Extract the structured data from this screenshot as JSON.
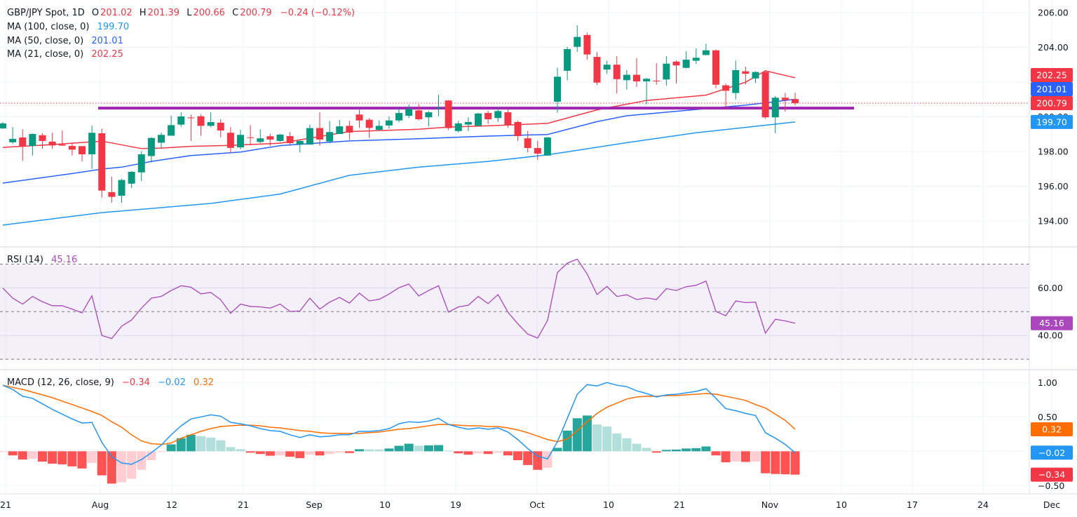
{
  "header": {
    "symbol": "GBP/JPY Spot, 1D",
    "o_label": "O",
    "open": "201.02",
    "h_label": "H",
    "high": "201.39",
    "l_label": "L",
    "low": "200.66",
    "c_label": "C",
    "close": "200.79",
    "change": "−0.24 (−0.12%)"
  },
  "ma_legend": [
    {
      "label": "MA (100, close, 0)",
      "value": "199.70",
      "color": "#2196f3"
    },
    {
      "label": "MA (50, close, 0)",
      "value": "201.01",
      "color": "#2962ff"
    },
    {
      "label": "MA (21, close, 0)",
      "value": "202.25",
      "color": "#f23645"
    }
  ],
  "rsi_legend": {
    "label": "RSI (14)",
    "value": "45.16"
  },
  "macd_legend": {
    "label": "MACD (12, 26, close, 9)",
    "hist": "−0.34",
    "macd": "−0.02",
    "signal": "0.32"
  },
  "price_axis": [
    "206.00",
    "204.00",
    "202.00",
    "200.00",
    "198.00",
    "196.00",
    "194.00"
  ],
  "rsi_axis": [
    "60.00",
    "40.00"
  ],
  "macd_axis": [
    "1.00",
    "0.50",
    "−0.50"
  ],
  "time_axis": [
    "21",
    "Aug",
    "12",
    "21",
    "Sep",
    "10",
    "19",
    "Oct",
    "10",
    "21",
    "Nov",
    "10",
    "17",
    "24",
    "Dec"
  ],
  "price_tags": [
    {
      "value": "202.25",
      "color": "#f23645"
    },
    {
      "value": "201.01",
      "color": "#2962ff"
    },
    {
      "value": "200.79",
      "color": "#f23645"
    },
    {
      "value": "199.70",
      "color": "#2196f3"
    }
  ],
  "rsi_tag": {
    "value": "45.16",
    "color": "#ab47bc"
  },
  "macd_tags": [
    {
      "value": "0.32",
      "color": "#ff6d00"
    },
    {
      "value": "−0.02",
      "color": "#2196f3"
    },
    {
      "value": "−0.34",
      "color": "#f23645"
    }
  ],
  "colors": {
    "up": "#089981",
    "down": "#f23645",
    "resistance": "#9c27b0",
    "rsi": "#ab47bc",
    "macd": "#2196f3",
    "signal": "#ff6d00"
  },
  "chart_data": [
    {
      "type": "candlestick",
      "title": "GBP/JPY Spot, 1D",
      "ylim": [
        193,
        206.6
      ],
      "grid": true,
      "resistance_line": 200.5,
      "last_price": 200.79,
      "candles": [
        [
          "07-18",
          199.33,
          199.7,
          199.3,
          199.62
        ],
        [
          "07-21",
          198.53,
          199.41,
          198.45,
          198.73
        ],
        [
          "07-22",
          198.81,
          199.28,
          197.46,
          198.28
        ],
        [
          "07-23",
          198.32,
          199.05,
          197.77,
          199.01
        ],
        [
          "07-24",
          198.94,
          199.05,
          198.16,
          198.61
        ],
        [
          "07-25",
          198.57,
          199.08,
          198.15,
          198.35
        ],
        [
          "07-28",
          198.4,
          199.21,
          198.33,
          198.34
        ],
        [
          "07-29",
          198.32,
          198.51,
          197.77,
          198.11
        ],
        [
          "07-30",
          198.31,
          198.31,
          197.43,
          197.84
        ],
        [
          "07-31",
          197.84,
          199.49,
          197.0,
          199.08
        ],
        [
          "08-01",
          199.05,
          199.32,
          195.35,
          195.75
        ],
        [
          "08-04",
          195.66,
          196.55,
          195.05,
          195.39
        ],
        [
          "08-05",
          195.45,
          196.43,
          195.05,
          196.36
        ],
        [
          "08-06",
          196.15,
          196.87,
          195.9,
          196.83
        ],
        [
          "08-07",
          196.8,
          198.02,
          196.29,
          197.84
        ],
        [
          "08-08",
          197.74,
          198.82,
          197.37,
          198.78
        ],
        [
          "08-11",
          198.51,
          199.09,
          198.17,
          198.96
        ],
        [
          "08-12",
          198.91,
          200.06,
          198.91,
          199.52
        ],
        [
          "08-13",
          199.55,
          200.26,
          199.43,
          200.02
        ],
        [
          "08-14",
          199.96,
          200.13,
          198.61,
          199.93
        ],
        [
          "08-15",
          200.03,
          200.13,
          198.91,
          199.48
        ],
        [
          "08-18",
          199.48,
          200.26,
          199.39,
          199.7
        ],
        [
          "08-19",
          199.66,
          199.86,
          198.82,
          199.21
        ],
        [
          "08-20",
          199.08,
          199.41,
          197.91,
          198.21
        ],
        [
          "08-21",
          198.24,
          199.25,
          198.13,
          198.96
        ],
        [
          "08-22",
          198.82,
          199.52,
          198.35,
          198.78
        ],
        [
          "08-25",
          198.55,
          199.28,
          198.48,
          198.76
        ],
        [
          "08-26",
          198.88,
          199.02,
          198.31,
          198.69
        ],
        [
          "08-27",
          198.61,
          199.0,
          198.55,
          198.98
        ],
        [
          "08-28",
          198.89,
          199.12,
          198.4,
          198.48
        ],
        [
          "08-29",
          198.4,
          198.67,
          197.95,
          198.61
        ],
        [
          "09-01",
          198.4,
          199.55,
          198.4,
          199.35
        ],
        [
          "09-02",
          199.35,
          200.26,
          198.34,
          198.69
        ],
        [
          "09-03",
          198.58,
          199.75,
          198.48,
          199.12
        ],
        [
          "09-04",
          199.01,
          199.82,
          199.0,
          199.45
        ],
        [
          "09-05",
          199.48,
          199.77,
          198.67,
          199.09
        ],
        [
          "09-08",
          200.13,
          200.4,
          199.36,
          199.79
        ],
        [
          "09-09",
          199.83,
          199.93,
          198.78,
          199.36
        ],
        [
          "09-10",
          199.25,
          199.79,
          199.2,
          199.48
        ],
        [
          "09-11",
          199.5,
          200.02,
          199.32,
          199.79
        ],
        [
          "09-12",
          199.79,
          200.49,
          199.68,
          200.22
        ],
        [
          "09-15",
          200.06,
          200.71,
          199.93,
          200.45
        ],
        [
          "09-16",
          200.37,
          200.73,
          199.79,
          199.86
        ],
        [
          "09-17",
          199.97,
          200.33,
          199.45,
          200.26
        ],
        [
          "09-18",
          200.5,
          201.27,
          200.03,
          200.53
        ],
        [
          "09-19",
          200.94,
          200.96,
          199.23,
          199.35
        ],
        [
          "09-22",
          199.18,
          199.77,
          199.1,
          199.62
        ],
        [
          "09-23",
          199.55,
          199.97,
          199.18,
          199.7
        ],
        [
          "09-24",
          199.48,
          200.22,
          199.45,
          200.19
        ],
        [
          "09-25",
          200.22,
          200.36,
          199.59,
          199.86
        ],
        [
          "09-26",
          199.93,
          200.51,
          199.7,
          200.33
        ],
        [
          "09-29",
          200.26,
          200.42,
          199.36,
          199.52
        ],
        [
          "09-30",
          199.7,
          199.77,
          198.61,
          198.89
        ],
        [
          "10-01",
          198.76,
          199.18,
          197.95,
          198.2
        ],
        [
          "10-02",
          198.2,
          198.62,
          197.5,
          197.88
        ],
        [
          "10-03",
          197.77,
          198.85,
          197.75,
          198.81
        ],
        [
          "10-06",
          200.87,
          202.82,
          200.23,
          202.31
        ],
        [
          "10-07",
          202.65,
          204.03,
          202.11,
          203.9
        ],
        [
          "10-08",
          204.03,
          205.27,
          203.74,
          204.6
        ],
        [
          "10-09",
          204.71,
          204.84,
          203.29,
          203.59
        ],
        [
          "10-10",
          203.45,
          203.72,
          201.84,
          201.97
        ],
        [
          "10-13",
          202.72,
          203.23,
          202.48,
          203.0
        ],
        [
          "10-14",
          203.0,
          203.49,
          201.34,
          202.17
        ],
        [
          "10-15",
          202.11,
          202.69,
          201.57,
          202.42
        ],
        [
          "10-16",
          202.42,
          203.39,
          201.72,
          202.04
        ],
        [
          "10-17",
          202.04,
          202.24,
          200.71,
          202.19
        ],
        [
          "10-20",
          202.08,
          203.09,
          201.85,
          202.04
        ],
        [
          "10-21",
          202.15,
          203.49,
          201.79,
          203.06
        ],
        [
          "10-22",
          203.18,
          203.25,
          201.92,
          202.96
        ],
        [
          "10-23",
          202.82,
          203.77,
          202.79,
          203.29
        ],
        [
          "10-24",
          203.23,
          203.94,
          203.05,
          203.4
        ],
        [
          "10-27",
          203.56,
          204.21,
          203.54,
          203.83
        ],
        [
          "10-28",
          203.83,
          203.87,
          201.65,
          201.85
        ],
        [
          "10-29",
          201.81,
          201.92,
          200.53,
          201.5
        ],
        [
          "10-30",
          201.37,
          203.23,
          201.0,
          202.69
        ],
        [
          "10-31",
          202.62,
          202.89,
          201.85,
          202.48
        ],
        [
          "11-03",
          202.21,
          202.62,
          201.95,
          202.58
        ],
        [
          "11-04",
          202.58,
          202.69,
          199.89,
          199.97
        ],
        [
          "11-05",
          199.97,
          201.2,
          199.05,
          201.1
        ],
        [
          "11-06",
          201.1,
          201.37,
          200.3,
          200.96
        ],
        [
          "11-07",
          201.02,
          201.39,
          200.66,
          200.79
        ]
      ],
      "moving_averages": [
        {
          "name": "MA (100, close, 0)",
          "color": "#2196f3",
          "points": [
            [
              "07-18",
              193.76
            ],
            [
              "08-01",
              194.48
            ],
            [
              "08-18",
              195.01
            ],
            [
              "08-27",
              195.55
            ],
            [
              "09-05",
              196.63
            ],
            [
              "09-16",
              197.1
            ],
            [
              "09-25",
              197.43
            ],
            [
              "10-03",
              197.81
            ],
            [
              "10-15",
              198.51
            ],
            [
              "10-24",
              199.08
            ],
            [
              "11-07",
              199.7
            ]
          ]
        },
        {
          "name": "MA (50, close, 0)",
          "color": "#2962ff",
          "points": [
            [
              "07-18",
              196.18
            ],
            [
              "07-29",
              196.73
            ],
            [
              "08-01",
              196.99
            ],
            [
              "08-05",
              197.1
            ],
            [
              "08-08",
              197.43
            ],
            [
              "08-14",
              197.77
            ],
            [
              "08-21",
              197.97
            ],
            [
              "08-27",
              198.34
            ],
            [
              "09-05",
              198.61
            ],
            [
              "09-16",
              198.74
            ],
            [
              "09-25",
              198.89
            ],
            [
              "10-03",
              198.98
            ],
            [
              "10-10",
              199.72
            ],
            [
              "10-15",
              200.06
            ],
            [
              "10-24",
              200.42
            ],
            [
              "10-31",
              200.67
            ],
            [
              "11-07",
              201.01
            ]
          ]
        },
        {
          "name": "MA (21, close, 0)",
          "color": "#f23645",
          "points": [
            [
              "07-18",
              198.24
            ],
            [
              "07-25",
              198.4
            ],
            [
              "08-01",
              198.6
            ],
            [
              "08-07",
              198.17
            ],
            [
              "08-11",
              198.2
            ],
            [
              "08-14",
              198.3
            ],
            [
              "08-20",
              198.35
            ],
            [
              "08-27",
              198.48
            ],
            [
              "09-05",
              199.15
            ],
            [
              "09-16",
              199.28
            ],
            [
              "09-19",
              199.41
            ],
            [
              "09-25",
              199.48
            ],
            [
              "10-03",
              199.62
            ],
            [
              "10-10",
              200.4
            ],
            [
              "10-17",
              200.94
            ],
            [
              "10-27",
              201.25
            ],
            [
              "10-31",
              201.99
            ],
            [
              "11-04",
              202.65
            ],
            [
              "11-07",
              202.25
            ]
          ]
        }
      ]
    },
    {
      "type": "line",
      "title": "RSI (14)",
      "ylim": [
        25,
        78
      ],
      "bands": [
        70,
        50,
        30
      ],
      "values": [
        59.9,
        55.7,
        53.2,
        56.4,
        54.2,
        52.5,
        52.5,
        51.1,
        49.5,
        56.7,
        40.0,
        38.7,
        43.9,
        46.5,
        51.5,
        55.7,
        56.4,
        58.9,
        60.9,
        60.3,
        57.5,
        58.1,
        55.0,
        49.3,
        53.2,
        52.2,
        52.0,
        51.5,
        53.2,
        50.1,
        50.3,
        55.7,
        51.1,
        54.0,
        56.0,
        53.6,
        57.8,
        54.5,
        55.2,
        57.4,
        60.1,
        61.6,
        56.6,
        58.9,
        60.9,
        49.8,
        52.0,
        52.7,
        56.4,
        53.4,
        57.2,
        49.8,
        44.9,
        40.6,
        38.9,
        46.3,
        66.5,
        70.4,
        72.1,
        65.8,
        57.2,
        60.6,
        56.4,
        57.1,
        55.1,
        55.8,
        55.1,
        59.7,
        58.9,
        60.5,
        61.1,
        62.9,
        50.1,
        48.3,
        54.5,
        53.8,
        54.0,
        41.0,
        46.8,
        46.1,
        45.16
      ]
    },
    {
      "type": "bar+line",
      "title": "MACD (12, 26, close, 9)",
      "ylim": [
        -0.55,
        1.1
      ],
      "histogram": [
        -0.01,
        -0.06,
        -0.12,
        -0.11,
        -0.15,
        -0.18,
        -0.19,
        -0.22,
        -0.25,
        -0.17,
        -0.35,
        -0.47,
        -0.45,
        -0.4,
        -0.27,
        -0.13,
        -0.01,
        0.1,
        0.19,
        0.24,
        0.22,
        0.2,
        0.16,
        0.06,
        0.03,
        -0.02,
        -0.04,
        -0.065,
        -0.06,
        -0.08,
        -0.1,
        -0.05,
        -0.06,
        -0.04,
        -0.02,
        -0.025,
        0.03,
        0.028,
        0.026,
        0.04,
        0.08,
        0.11,
        0.08,
        0.085,
        0.09,
        0.01,
        -0.03,
        -0.05,
        -0.03,
        -0.04,
        -0.02,
        -0.06,
        -0.13,
        -0.2,
        -0.27,
        -0.24,
        0.05,
        0.3,
        0.48,
        0.52,
        0.39,
        0.36,
        0.26,
        0.19,
        0.11,
        0.05,
        -0.02,
        0.02,
        0.025,
        0.04,
        0.045,
        0.07,
        -0.06,
        -0.16,
        -0.15,
        -0.155,
        -0.15,
        -0.32,
        -0.33,
        -0.335,
        -0.34
      ],
      "macd": [
        0.96,
        0.9,
        0.8,
        0.77,
        0.69,
        0.61,
        0.54,
        0.47,
        0.41,
        0.42,
        0.13,
        -0.08,
        -0.17,
        -0.19,
        -0.12,
        -0.02,
        0.09,
        0.24,
        0.37,
        0.47,
        0.5,
        0.53,
        0.51,
        0.42,
        0.4,
        0.37,
        0.33,
        0.3,
        0.29,
        0.24,
        0.2,
        0.24,
        0.21,
        0.22,
        0.24,
        0.24,
        0.29,
        0.29,
        0.3,
        0.33,
        0.4,
        0.43,
        0.42,
        0.44,
        0.48,
        0.39,
        0.35,
        0.32,
        0.34,
        0.32,
        0.34,
        0.28,
        0.17,
        0.04,
        -0.07,
        -0.11,
        0.14,
        0.48,
        0.83,
        0.97,
        0.95,
        1.0,
        0.96,
        0.94,
        0.88,
        0.84,
        0.79,
        0.82,
        0.83,
        0.85,
        0.87,
        0.91,
        0.77,
        0.62,
        0.59,
        0.55,
        0.52,
        0.27,
        0.19,
        0.1,
        -0.02
      ],
      "signal": [
        0.96,
        0.93,
        0.9,
        0.86,
        0.82,
        0.78,
        0.73,
        0.68,
        0.63,
        0.58,
        0.52,
        0.43,
        0.35,
        0.24,
        0.15,
        0.11,
        0.1,
        0.12,
        0.19,
        0.24,
        0.29,
        0.33,
        0.36,
        0.37,
        0.38,
        0.38,
        0.37,
        0.35,
        0.34,
        0.32,
        0.3,
        0.29,
        0.27,
        0.26,
        0.26,
        0.26,
        0.26,
        0.27,
        0.28,
        0.3,
        0.32,
        0.33,
        0.35,
        0.37,
        0.39,
        0.39,
        0.38,
        0.37,
        0.37,
        0.36,
        0.36,
        0.34,
        0.31,
        0.27,
        0.22,
        0.17,
        0.14,
        0.18,
        0.3,
        0.43,
        0.55,
        0.64,
        0.7,
        0.76,
        0.79,
        0.8,
        0.8,
        0.81,
        0.81,
        0.82,
        0.83,
        0.84,
        0.83,
        0.8,
        0.77,
        0.74,
        0.68,
        0.63,
        0.54,
        0.45,
        0.32
      ]
    }
  ]
}
